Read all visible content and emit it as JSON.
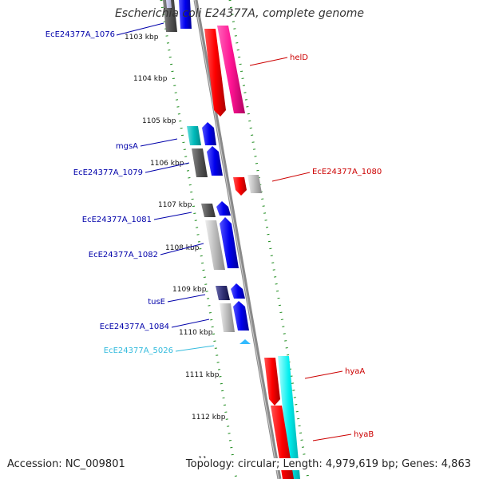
{
  "title": "Escherichia coli E24377A, complete genome",
  "footer": {
    "accession": "Accession: NC_009801",
    "topology": "Topology: circular; Length: 4,979,619 bp; Genes: 4,863"
  },
  "colors": {
    "backbone": "#8a8a8a",
    "tick": "#1a8a1a",
    "left_label": "#0000aa",
    "right_label": "#cc0000",
    "cyan_label": "#33bbdd"
  },
  "kbp_labels": [
    "1103 kbp",
    "1104 kbp",
    "1105 kbp",
    "1106 kbp",
    "1107 kbp",
    "1108 kbp",
    "1109 kbp",
    "1110 kbp",
    "1111 kbp",
    "1112 kbp",
    "11"
  ],
  "genes": [
    {
      "name": "EcE24377A_1076",
      "side": "left",
      "color": "#0000aa"
    },
    {
      "name": "mgsA",
      "side": "left",
      "color": "#0000aa"
    },
    {
      "name": "EcE24377A_1079",
      "side": "left",
      "color": "#0000aa"
    },
    {
      "name": "EcE24377A_1081",
      "side": "left",
      "color": "#0000aa"
    },
    {
      "name": "EcE24377A_1082",
      "side": "left",
      "color": "#0000aa"
    },
    {
      "name": "tusE",
      "side": "left",
      "color": "#0000aa"
    },
    {
      "name": "EcE24377A_1084",
      "side": "left",
      "color": "#0000aa"
    },
    {
      "name": "EcE24377A_5026",
      "side": "left",
      "color": "#33bbdd"
    },
    {
      "name": "helD",
      "side": "right",
      "color": "#cc0000"
    },
    {
      "name": "EcE24377A_1080",
      "side": "right",
      "color": "#cc0000"
    },
    {
      "name": "hyaA",
      "side": "right",
      "color": "#cc0000"
    },
    {
      "name": "hyaB",
      "side": "right",
      "color": "#cc0000"
    }
  ]
}
